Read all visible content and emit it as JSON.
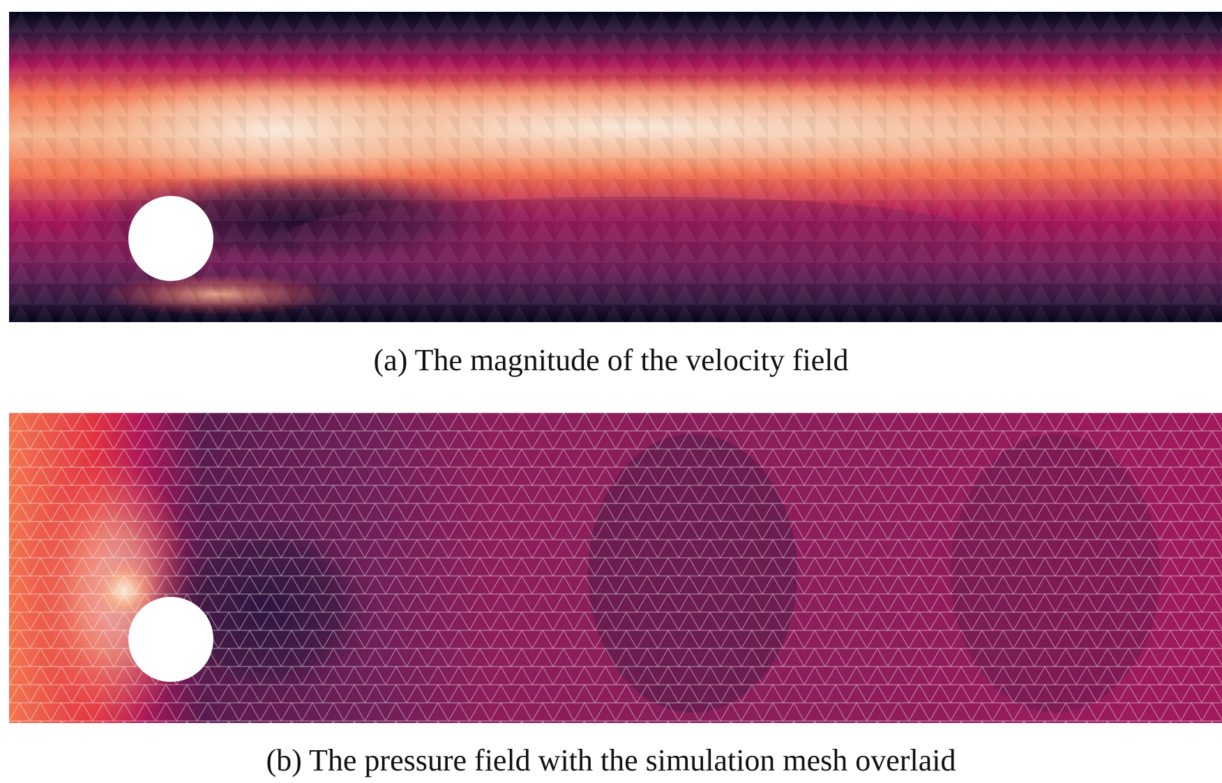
{
  "figure": {
    "panel_a": {
      "caption": "(a) The magnitude of the velocity field",
      "field": "velocity magnitude",
      "colormap": "rocket",
      "mesh_overlay": false
    },
    "panel_b": {
      "caption": "(b) The pressure field with the simulation mesh overlaid",
      "field": "pressure",
      "colormap": "rocket",
      "mesh_overlay": true,
      "mesh_color": "#ffffff"
    },
    "obstacle": {
      "shape": "circle",
      "color": "#ffffff"
    },
    "colormap_stops": [
      "#03051a",
      "#35193e",
      "#701f57",
      "#ad1759",
      "#e13342",
      "#f37651",
      "#f6b48f",
      "#faebdd"
    ]
  }
}
